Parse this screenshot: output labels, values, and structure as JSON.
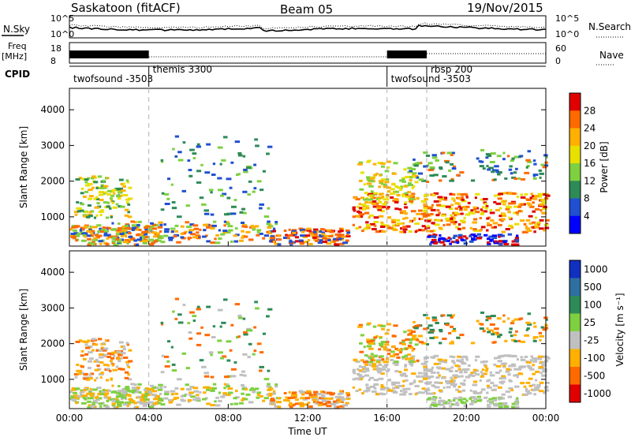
{
  "header": {
    "station": "Saskatoon (fitACF)",
    "beam": "Beam 05",
    "date": "19/Nov/2015"
  },
  "top_panels": {
    "nsky_label": "N.Sky",
    "nsky_ticks": [
      "10^5",
      "10^0"
    ],
    "nsearch_ticks": [
      "10^5",
      "10^0"
    ],
    "nsearch_label": "N.Search",
    "freq_label_1": "Freq",
    "freq_label_2": "[MHz]",
    "freq_ticks": [
      "18",
      "8"
    ],
    "nave_ticks": [
      "60",
      "0"
    ],
    "nave_label": "Nave",
    "cpid_label": "CPID"
  },
  "cpid_segments": [
    {
      "name": "twofsound -3503",
      "start_hour": 0.0,
      "end_hour": 4.0
    },
    {
      "name": "themis 3300",
      "start_hour": 4.0,
      "end_hour": 16.0
    },
    {
      "name": "twofsound -3503",
      "start_hour": 16.0,
      "end_hour": 18.0
    },
    {
      "name": "rbsp 200",
      "start_hour": 18.0,
      "end_hour": 24.0
    }
  ],
  "chart_data": [
    {
      "type": "heatmap",
      "title": "Power",
      "xlabel": "Time UT",
      "ylabel": "Slant Range [km]",
      "xlim_hours": [
        0,
        24
      ],
      "ylim": [
        180,
        4600
      ],
      "ytick_values": [
        1000,
        2000,
        3000,
        4000
      ],
      "colorbar": {
        "label": "Power [dB]",
        "ticks": [
          "28",
          "24",
          "20",
          "16",
          "12",
          "8",
          "4"
        ],
        "colors": [
          "#e00000",
          "#ff6a00",
          "#ffb000",
          "#e8e000",
          "#7ed040",
          "#2e8b57",
          "#2050d0",
          "#0000ff"
        ]
      }
    },
    {
      "type": "heatmap",
      "title": "Velocity",
      "xlabel": "Time UT",
      "ylabel": "Slant Range [km]",
      "xlim_hours": [
        0,
        24
      ],
      "ylim": [
        180,
        4600
      ],
      "ytick_values": [
        1000,
        2000,
        3000,
        4000
      ],
      "colorbar": {
        "label": "Velocity [m s⁻¹]",
        "ticks": [
          "1000",
          "500",
          "100",
          "25",
          "-25",
          "-100",
          "-500",
          "-1000"
        ],
        "colors": [
          "#1030c0",
          "#2e6fa0",
          "#2e8b57",
          "#7ed040",
          "#c0c0c0",
          "#ffb000",
          "#ff6a00",
          "#e00000"
        ]
      }
    }
  ],
  "x_ticks": [
    "00:00",
    "04:00",
    "08:00",
    "12:00",
    "16:00",
    "20:00",
    "00:00"
  ],
  "y_ticks": [
    "1000",
    "2000",
    "3000",
    "4000"
  ],
  "xaxis_label": "Time UT",
  "yaxis_label": "Slant Range [km]",
  "power_bar": {
    "label": "Power [dB]",
    "ticks": [
      "28",
      "24",
      "20",
      "16",
      "12",
      "8",
      "4"
    ]
  },
  "velocity_bar": {
    "label": "Velocity [m s⁻¹]",
    "ticks": [
      "1000",
      "500",
      "100",
      "25",
      "-25",
      "-100",
      "-500",
      "-1000"
    ]
  }
}
